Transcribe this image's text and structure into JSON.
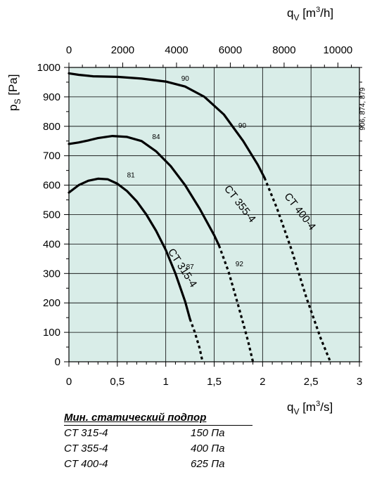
{
  "chart_data": {
    "type": "line",
    "plot_background": "#d9ede8",
    "x_axis": {
      "label_base": "q",
      "label_sub": "V",
      "label_unit_pre": " [m",
      "label_unit_sup": "3",
      "label_unit_post": "/s]",
      "range": [
        0,
        3
      ],
      "ticks": [
        0,
        0.5,
        1,
        1.5,
        2,
        2.5,
        3
      ],
      "tick_labels": [
        "0",
        "0,5",
        "1",
        "1,5",
        "2",
        "2,5",
        "3"
      ]
    },
    "x2_axis": {
      "label_base": "q",
      "label_sub": "V",
      "label_unit_pre": " [m",
      "label_unit_sup": "3",
      "label_unit_post": "/h]",
      "range": [
        0,
        10800
      ],
      "ticks": [
        0,
        2000,
        4000,
        6000,
        8000,
        10000
      ],
      "tick_labels": [
        "0",
        "2000",
        "4000",
        "6000",
        "8000",
        "10000"
      ]
    },
    "y_axis": {
      "label_base": "p",
      "label_sub": "S",
      "label_unit": " [Pa]",
      "range": [
        0,
        1000
      ],
      "ticks": [
        0,
        100,
        200,
        300,
        400,
        500,
        600,
        700,
        800,
        900,
        1000
      ],
      "tick_labels": [
        "0",
        "100",
        "200",
        "300",
        "400",
        "500",
        "600",
        "700",
        "800",
        "900",
        "1000"
      ]
    },
    "grid": true,
    "series": [
      {
        "name": "CT 315-4",
        "solid": [
          [
            0,
            575
          ],
          [
            0.1,
            600
          ],
          [
            0.2,
            615
          ],
          [
            0.3,
            622
          ],
          [
            0.4,
            620
          ],
          [
            0.5,
            605
          ],
          [
            0.6,
            580
          ],
          [
            0.7,
            545
          ],
          [
            0.8,
            500
          ],
          [
            0.9,
            445
          ],
          [
            1.0,
            380
          ],
          [
            1.1,
            300
          ],
          [
            1.2,
            205
          ],
          [
            1.25,
            145
          ]
        ],
        "dashed": [
          [
            1.25,
            145
          ],
          [
            1.3,
            100
          ],
          [
            1.35,
            45
          ],
          [
            1.38,
            0
          ]
        ],
        "label_pos": [
          1.02,
          375
        ],
        "label_rot": 57
      },
      {
        "name": "CT 355-4",
        "solid": [
          [
            0,
            740
          ],
          [
            0.1,
            745
          ],
          [
            0.2,
            752
          ],
          [
            0.3,
            760
          ],
          [
            0.45,
            767
          ],
          [
            0.6,
            764
          ],
          [
            0.75,
            750
          ],
          [
            0.9,
            715
          ],
          [
            1.05,
            665
          ],
          [
            1.2,
            600
          ],
          [
            1.35,
            520
          ],
          [
            1.5,
            430
          ],
          [
            1.55,
            395
          ]
        ],
        "dashed": [
          [
            1.55,
            395
          ],
          [
            1.65,
            305
          ],
          [
            1.75,
            190
          ],
          [
            1.85,
            70
          ],
          [
            1.9,
            0
          ]
        ],
        "label_pos": [
          1.6,
          588
        ],
        "label_rot": 52
      },
      {
        "name": "CT 400-4",
        "solid": [
          [
            0,
            980
          ],
          [
            0.1,
            975
          ],
          [
            0.25,
            970
          ],
          [
            0.5,
            968
          ],
          [
            0.75,
            962
          ],
          [
            1.0,
            952
          ],
          [
            1.2,
            935
          ],
          [
            1.4,
            900
          ],
          [
            1.6,
            840
          ],
          [
            1.8,
            750
          ],
          [
            1.95,
            670
          ],
          [
            2.02,
            625
          ]
        ],
        "dashed": [
          [
            2.02,
            625
          ],
          [
            2.15,
            520
          ],
          [
            2.3,
            380
          ],
          [
            2.45,
            220
          ],
          [
            2.6,
            80
          ],
          [
            2.7,
            0
          ]
        ],
        "label_pos": [
          2.22,
          562
        ],
        "label_rot": 52
      }
    ],
    "annotations": [
      {
        "text": "90",
        "x": 1.16,
        "y": 955
      },
      {
        "text": "90",
        "x": 1.75,
        "y": 795
      },
      {
        "text": "84",
        "x": 0.86,
        "y": 757
      },
      {
        "text": "81",
        "x": 0.6,
        "y": 627
      },
      {
        "text": "92",
        "x": 1.72,
        "y": 325
      },
      {
        "text": "87",
        "x": 1.21,
        "y": 315
      }
    ]
  },
  "side_note": "906, 874, 879",
  "pressure_table": {
    "title": "Мин. статический подпор",
    "rows": [
      {
        "model": "CT 315-4",
        "value": "150 Па"
      },
      {
        "model": "CT 355-4",
        "value": "400 Па"
      },
      {
        "model": "CT 400-4",
        "value": "625 Па"
      }
    ]
  }
}
